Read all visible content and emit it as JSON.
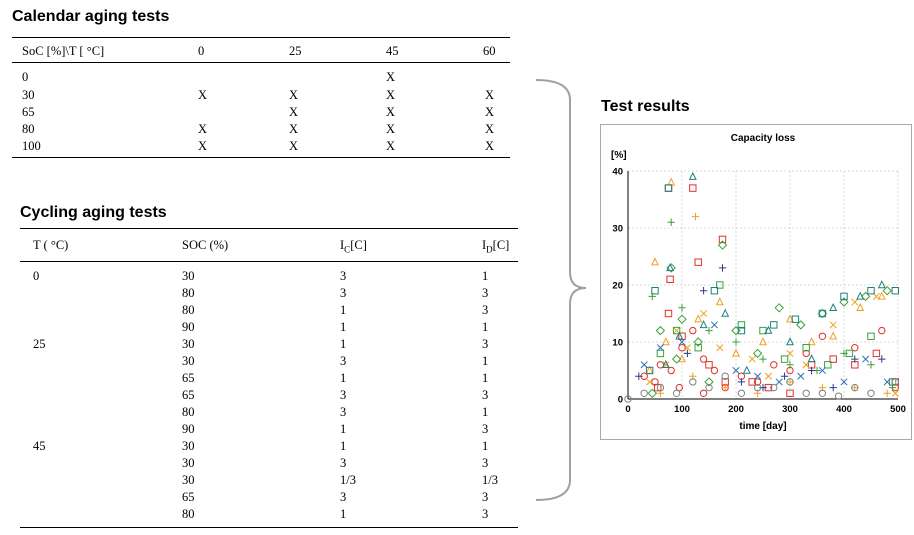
{
  "calendar": {
    "title": "Calendar aging tests",
    "header": [
      "SoC [%]\\T [ °C]",
      "0",
      "25",
      "45",
      "60"
    ],
    "rows": [
      {
        "soc": "0",
        "marks": [
          "",
          "",
          "X",
          ""
        ]
      },
      {
        "soc": "30",
        "marks": [
          "X",
          "X",
          "X",
          "X"
        ]
      },
      {
        "soc": "65",
        "marks": [
          "",
          "X",
          "X",
          "X"
        ]
      },
      {
        "soc": "80",
        "marks": [
          "X",
          "X",
          "X",
          "X"
        ]
      },
      {
        "soc": "100",
        "marks": [
          "X",
          "X",
          "X",
          "X"
        ]
      }
    ]
  },
  "cycling": {
    "title": "Cycling aging tests",
    "header": {
      "t": "T ( °C)",
      "soc": "SOC (%)",
      "ic_main": "I",
      "ic_sub": "C",
      "ic_tail": "[C]",
      "id_main": "I",
      "id_sub": "D",
      "id_tail": "[C]"
    },
    "rows": [
      {
        "t": "0",
        "soc": "30",
        "ic": "3",
        "id": "1"
      },
      {
        "t": "",
        "soc": "80",
        "ic": "3",
        "id": "3"
      },
      {
        "t": "",
        "soc": "80",
        "ic": "1",
        "id": "3"
      },
      {
        "t": "",
        "soc": "90",
        "ic": "1",
        "id": "1"
      },
      {
        "t": "25",
        "soc": "30",
        "ic": "1",
        "id": "3"
      },
      {
        "t": "",
        "soc": "30",
        "ic": "3",
        "id": "1"
      },
      {
        "t": "",
        "soc": "65",
        "ic": "1",
        "id": "1"
      },
      {
        "t": "",
        "soc": "65",
        "ic": "3",
        "id": "3"
      },
      {
        "t": "",
        "soc": "80",
        "ic": "3",
        "id": "1"
      },
      {
        "t": "",
        "soc": "90",
        "ic": "1",
        "id": "3"
      },
      {
        "t": "45",
        "soc": "30",
        "ic": "1",
        "id": "1"
      },
      {
        "t": "",
        "soc": "30",
        "ic": "3",
        "id": "3"
      },
      {
        "t": "",
        "soc": "30",
        "ic": "1/3",
        "id": "1/3"
      },
      {
        "t": "",
        "soc": "65",
        "ic": "3",
        "id": "3"
      },
      {
        "t": "",
        "soc": "80",
        "ic": "1",
        "id": "3"
      }
    ]
  },
  "results": {
    "title": "Test results"
  },
  "colors": {
    "red": "#e0302a",
    "orange": "#f0a020",
    "green": "#3aa03a",
    "teal": "#1f7f7f",
    "blue": "#3070c0",
    "darkblue": "#2a3b8f",
    "gray": "#808080"
  },
  "chart_data": {
    "type": "scatter",
    "title": "Capacity loss",
    "xlabel": "time [day]",
    "ylabel": "[%]",
    "xlim": [
      0,
      500
    ],
    "ylim": [
      0,
      40
    ],
    "xticks": [
      "0",
      "100",
      "200",
      "300",
      "400",
      "500"
    ],
    "yticks": [
      "0",
      "10",
      "20",
      "30",
      "40"
    ],
    "grid": true,
    "legend": "none",
    "series": [
      {
        "name": "red circles",
        "marker": "circle",
        "color": "#e0302a",
        "points": [
          [
            30,
            4
          ],
          [
            50,
            3
          ],
          [
            60,
            6
          ],
          [
            80,
            5
          ],
          [
            100,
            9
          ],
          [
            120,
            12
          ],
          [
            140,
            7
          ],
          [
            160,
            5
          ],
          [
            180,
            2
          ],
          [
            210,
            4
          ],
          [
            240,
            3
          ],
          [
            270,
            6
          ],
          [
            300,
            5
          ],
          [
            330,
            8
          ],
          [
            360,
            11
          ],
          [
            420,
            9
          ],
          [
            470,
            12
          ],
          [
            495,
            2
          ],
          [
            95,
            2
          ],
          [
            140,
            1
          ]
        ]
      },
      {
        "name": "red squares",
        "marker": "square",
        "color": "#e0302a",
        "points": [
          [
            75,
            37
          ],
          [
            78,
            21
          ],
          [
            120,
            37
          ],
          [
            130,
            24
          ],
          [
            175,
            28
          ],
          [
            75,
            15
          ],
          [
            100,
            11
          ],
          [
            150,
            6
          ],
          [
            180,
            3
          ],
          [
            230,
            3
          ],
          [
            260,
            2
          ],
          [
            300,
            1
          ],
          [
            340,
            6
          ],
          [
            380,
            7
          ],
          [
            420,
            6
          ],
          [
            460,
            8
          ],
          [
            495,
            3
          ],
          [
            55,
            2
          ]
        ]
      },
      {
        "name": "orange triangles",
        "marker": "triangle",
        "color": "#f0a020",
        "points": [
          [
            50,
            24
          ],
          [
            70,
            10
          ],
          [
            80,
            38
          ],
          [
            100,
            7
          ],
          [
            130,
            14
          ],
          [
            170,
            17
          ],
          [
            200,
            8
          ],
          [
            250,
            10
          ],
          [
            300,
            14
          ],
          [
            340,
            10
          ],
          [
            380,
            11
          ],
          [
            430,
            16
          ],
          [
            470,
            18
          ],
          [
            40,
            5
          ]
        ]
      },
      {
        "name": "orange crosses",
        "marker": "x",
        "color": "#f0a020",
        "points": [
          [
            40,
            3
          ],
          [
            70,
            6
          ],
          [
            90,
            12
          ],
          [
            110,
            9
          ],
          [
            140,
            15
          ],
          [
            170,
            9
          ],
          [
            200,
            5
          ],
          [
            230,
            7
          ],
          [
            260,
            4
          ],
          [
            300,
            8
          ],
          [
            330,
            6
          ],
          [
            380,
            13
          ],
          [
            420,
            17
          ],
          [
            460,
            18
          ],
          [
            495,
            1
          ]
        ]
      },
      {
        "name": "orange plus",
        "marker": "plus",
        "color": "#f0a020",
        "points": [
          [
            125,
            32
          ],
          [
            60,
            1
          ],
          [
            120,
            4
          ],
          [
            180,
            2
          ],
          [
            240,
            1
          ],
          [
            300,
            3
          ],
          [
            360,
            2
          ],
          [
            420,
            2
          ],
          [
            480,
            1
          ]
        ]
      },
      {
        "name": "green diamonds",
        "marker": "diamond",
        "color": "#3aa03a",
        "points": [
          [
            45,
            1
          ],
          [
            60,
            12
          ],
          [
            80,
            23
          ],
          [
            100,
            14
          ],
          [
            130,
            10
          ],
          [
            175,
            27
          ],
          [
            200,
            12
          ],
          [
            240,
            8
          ],
          [
            280,
            16
          ],
          [
            320,
            13
          ],
          [
            360,
            15
          ],
          [
            400,
            17
          ],
          [
            440,
            18
          ],
          [
            480,
            19
          ],
          [
            90,
            7
          ],
          [
            150,
            3
          ]
        ]
      },
      {
        "name": "green squares",
        "marker": "square",
        "color": "#3aa03a",
        "points": [
          [
            90,
            12
          ],
          [
            130,
            9
          ],
          [
            170,
            20
          ],
          [
            210,
            13
          ],
          [
            250,
            12
          ],
          [
            290,
            7
          ],
          [
            330,
            9
          ],
          [
            370,
            6
          ],
          [
            410,
            8
          ],
          [
            450,
            11
          ],
          [
            490,
            3
          ],
          [
            60,
            8
          ]
        ]
      },
      {
        "name": "green plus",
        "marker": "plus",
        "color": "#3aa03a",
        "points": [
          [
            80,
            31
          ],
          [
            45,
            18
          ],
          [
            100,
            16
          ],
          [
            150,
            12
          ],
          [
            200,
            10
          ],
          [
            250,
            7
          ],
          [
            300,
            6
          ],
          [
            350,
            5
          ],
          [
            400,
            8
          ],
          [
            450,
            6
          ],
          [
            490,
            2
          ]
        ]
      },
      {
        "name": "teal triangles",
        "marker": "triangle",
        "color": "#1f7f7f",
        "points": [
          [
            120,
            39
          ],
          [
            78,
            23
          ],
          [
            95,
            11
          ],
          [
            140,
            13
          ],
          [
            180,
            15
          ],
          [
            220,
            5
          ],
          [
            260,
            12
          ],
          [
            300,
            10
          ],
          [
            340,
            7
          ],
          [
            380,
            16
          ],
          [
            430,
            18
          ],
          [
            470,
            20
          ],
          [
            70,
            6
          ]
        ]
      },
      {
        "name": "teal squares",
        "marker": "square",
        "color": "#1f7f7f",
        "points": [
          [
            75,
            37
          ],
          [
            50,
            19
          ],
          [
            160,
            19
          ],
          [
            210,
            12
          ],
          [
            270,
            13
          ],
          [
            310,
            14
          ],
          [
            360,
            15
          ],
          [
            400,
            18
          ],
          [
            450,
            19
          ],
          [
            495,
            19
          ],
          [
            40,
            5
          ]
        ]
      },
      {
        "name": "blue crosses",
        "marker": "x",
        "color": "#3070c0",
        "points": [
          [
            60,
            9
          ],
          [
            100,
            10
          ],
          [
            160,
            13
          ],
          [
            200,
            5
          ],
          [
            240,
            4
          ],
          [
            280,
            3
          ],
          [
            320,
            4
          ],
          [
            360,
            5
          ],
          [
            400,
            3
          ],
          [
            440,
            7
          ],
          [
            480,
            3
          ],
          [
            30,
            6
          ]
        ]
      },
      {
        "name": "dark blue plus",
        "marker": "plus",
        "color": "#2a3b8f",
        "points": [
          [
            175,
            23
          ],
          [
            140,
            19
          ],
          [
            110,
            8
          ],
          [
            210,
            3
          ],
          [
            250,
            2
          ],
          [
            290,
            4
          ],
          [
            340,
            5
          ],
          [
            380,
            2
          ],
          [
            420,
            7
          ],
          [
            470,
            7
          ],
          [
            20,
            4
          ]
        ]
      },
      {
        "name": "gray circles",
        "marker": "circle",
        "color": "#808080",
        "points": [
          [
            60,
            2
          ],
          [
            120,
            3
          ],
          [
            180,
            4
          ],
          [
            240,
            2
          ],
          [
            300,
            3
          ],
          [
            360,
            1
          ],
          [
            420,
            2
          ],
          [
            495,
            3
          ],
          [
            0,
            0
          ],
          [
            30,
            1
          ],
          [
            90,
            1
          ],
          [
            150,
            2
          ],
          [
            210,
            1
          ],
          [
            270,
            2
          ],
          [
            330,
            1
          ],
          [
            390,
            0.5
          ],
          [
            450,
            1
          ]
        ]
      }
    ]
  }
}
